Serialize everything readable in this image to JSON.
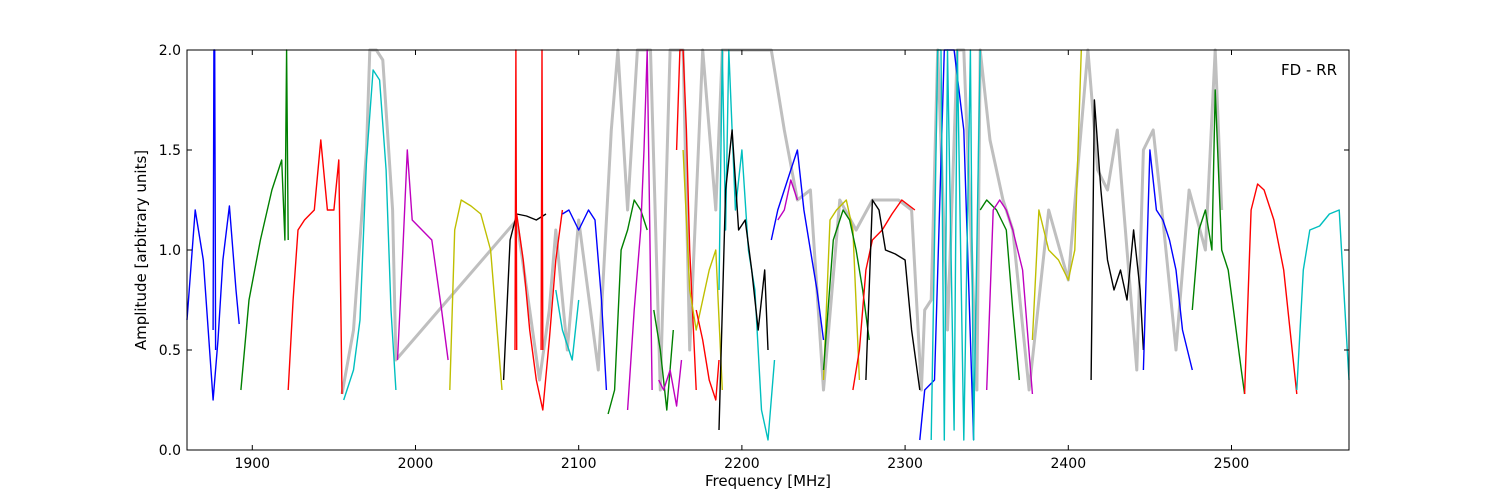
{
  "chart_data": {
    "type": "line",
    "title": "",
    "annotation": "FD - RR",
    "xlabel": "Frequency [MHz]",
    "ylabel": "Amplitude [arbitrary units]",
    "xlim": [
      1860,
      2572
    ],
    "ylim": [
      0.0,
      2.0
    ],
    "xticks": [
      1900,
      2000,
      2100,
      2200,
      2300,
      2400,
      2500
    ],
    "xtick_labels": [
      "1900",
      "2000",
      "2100",
      "2200",
      "2300",
      "2400",
      "2500"
    ],
    "yticks": [
      0.0,
      0.5,
      1.0,
      1.5,
      2.0
    ],
    "ytick_labels": [
      "0.0",
      "0.5",
      "1.0",
      "1.5",
      "2.0"
    ],
    "grid": false,
    "envelope": {
      "color": "#bfbfbf",
      "x": [
        1955,
        1962,
        1970,
        1972,
        1976,
        1980,
        1986,
        1988,
        2062,
        2070,
        2076,
        2082,
        2086,
        2093,
        2100,
        2112,
        2120,
        2124,
        2130,
        2136,
        2144,
        2150,
        2156,
        2164,
        2168,
        2176,
        2184,
        2188,
        2196,
        2204,
        2212,
        2218,
        2226,
        2234,
        2242,
        2250,
        2260,
        2270,
        2280,
        2296,
        2304,
        2310,
        2312,
        2316,
        2320,
        2326,
        2332,
        2336,
        2344,
        2346,
        2352,
        2360,
        2366,
        2376,
        2388,
        2400,
        2412,
        2418,
        2424,
        2430,
        2436,
        2442,
        2446,
        2452,
        2458,
        2466,
        2474,
        2484,
        2490,
        2494
      ],
      "y": [
        0.28,
        0.6,
        1.5,
        2.0,
        2.0,
        1.95,
        1.2,
        0.45,
        1.15,
        0.7,
        0.35,
        0.7,
        1.1,
        0.5,
        1.15,
        0.4,
        1.6,
        2.0,
        1.2,
        2.0,
        2.0,
        0.3,
        2.0,
        2.0,
        0.5,
        2.0,
        1.2,
        2.0,
        2.0,
        2.0,
        2.0,
        2.0,
        1.6,
        1.25,
        1.3,
        0.3,
        1.25,
        1.1,
        1.25,
        1.25,
        1.2,
        0.3,
        0.7,
        0.75,
        2.0,
        0.6,
        2.0,
        2.0,
        0.3,
        2.0,
        1.55,
        1.25,
        1.1,
        0.3,
        1.2,
        0.85,
        2.0,
        1.4,
        1.3,
        1.6,
        1.0,
        0.4,
        1.5,
        1.6,
        1.15,
        0.5,
        1.3,
        1.0,
        2.0,
        1.2
      ],
      "note": "grey traces behind the coloured curves (spiky/peaky regions)"
    },
    "series": [
      {
        "color": "#0000ff",
        "x": [
          1860,
          1865,
          1870,
          1873,
          1876,
          1879,
          1882,
          1886,
          1890,
          1892
        ],
        "y": [
          0.65,
          1.2,
          0.95,
          0.6,
          0.25,
          0.55,
          0.95,
          1.22,
          0.8,
          0.63
        ]
      },
      {
        "color": "#0000ff",
        "x": [
          1876,
          1876.5,
          1877,
          1877.5
        ],
        "y": [
          0.6,
          2.0,
          2.0,
          0.5
        ]
      },
      {
        "color": "#008000",
        "x": [
          1893,
          1898,
          1905,
          1912,
          1918,
          1920,
          1921,
          1922
        ],
        "y": [
          0.3,
          0.75,
          1.05,
          1.3,
          1.45,
          1.05,
          2.0,
          1.05
        ]
      },
      {
        "color": "#ff0000",
        "x": [
          1922,
          1925,
          1928,
          1932,
          1938,
          1942,
          1946,
          1950,
          1953,
          1955
        ],
        "y": [
          0.3,
          0.75,
          1.1,
          1.15,
          1.2,
          1.55,
          1.2,
          1.2,
          1.45,
          0.28
        ]
      },
      {
        "color": "#00bfbf",
        "x": [
          1956,
          1962,
          1966,
          1970,
          1974,
          1978,
          1982,
          1985,
          1988
        ],
        "y": [
          0.25,
          0.4,
          0.65,
          1.45,
          1.9,
          1.85,
          1.4,
          0.7,
          0.3
        ]
      },
      {
        "color": "#bf00bf",
        "x": [
          1989,
          1992,
          1995,
          1998,
          2004,
          2010,
          2016,
          2020
        ],
        "y": [
          0.45,
          0.95,
          1.5,
          1.15,
          1.1,
          1.05,
          0.7,
          0.45
        ]
      },
      {
        "color": "#bfbf00",
        "x": [
          2021,
          2024,
          2028,
          2034,
          2040,
          2046,
          2050,
          2053
        ],
        "y": [
          0.3,
          1.1,
          1.25,
          1.22,
          1.18,
          1.0,
          0.6,
          0.3
        ]
      },
      {
        "color": "#000000",
        "x": [
          2054,
          2058,
          2062,
          2068,
          2074,
          2080
        ],
        "y": [
          0.35,
          1.05,
          1.18,
          1.17,
          1.15,
          1.18
        ]
      },
      {
        "color": "#ff0000",
        "x": [
          2062,
          2066,
          2070,
          2074,
          2078,
          2082,
          2086,
          2090
        ],
        "y": [
          1.18,
          0.95,
          0.6,
          0.35,
          0.2,
          0.55,
          0.95,
          1.2
        ]
      },
      {
        "color": "#ff0000",
        "x": [
          2061,
          2061.5,
          2062
        ],
        "y": [
          0.5,
          2.0,
          0.5
        ]
      },
      {
        "color": "#ff0000",
        "x": [
          2077,
          2077.5,
          2078
        ],
        "y": [
          0.5,
          2.0,
          0.5
        ]
      },
      {
        "color": "#0000ff",
        "x": [
          2090,
          2094,
          2100,
          2106,
          2110,
          2114,
          2117
        ],
        "y": [
          1.18,
          1.2,
          1.1,
          1.2,
          1.15,
          0.75,
          0.3
        ]
      },
      {
        "color": "#00bfbf",
        "x": [
          2086,
          2090,
          2096,
          2100
        ],
        "y": [
          0.8,
          0.6,
          0.45,
          0.75
        ]
      },
      {
        "color": "#008000",
        "x": [
          2118,
          2122,
          2126,
          2130,
          2134,
          2138,
          2142
        ],
        "y": [
          0.18,
          0.3,
          1.0,
          1.1,
          1.25,
          1.2,
          1.1
        ]
      },
      {
        "color": "#bf00bf",
        "x": [
          2130,
          2134,
          2138,
          2140,
          2142,
          2145
        ],
        "y": [
          0.2,
          0.7,
          1.1,
          1.5,
          2.0,
          0.3
        ]
      },
      {
        "color": "#008000",
        "x": [
          2146,
          2150,
          2154,
          2158
        ],
        "y": [
          0.7,
          0.5,
          0.2,
          0.6
        ]
      },
      {
        "color": "#bf00bf",
        "x": [
          2149,
          2152,
          2156,
          2160,
          2163
        ],
        "y": [
          0.35,
          0.3,
          0.4,
          0.22,
          0.45
        ]
      },
      {
        "color": "#ff0000",
        "x": [
          2160,
          2162,
          2164,
          2166,
          2168,
          2172
        ],
        "y": [
          1.5,
          2.0,
          2.0,
          1.6,
          1.0,
          0.3
        ]
      },
      {
        "color": "#bfbf00",
        "x": [
          2164,
          2168,
          2172,
          2176,
          2180,
          2184,
          2188
        ],
        "y": [
          1.5,
          0.8,
          0.6,
          0.75,
          0.9,
          1.0,
          0.3
        ]
      },
      {
        "color": "#ff0000",
        "x": [
          2172,
          2176,
          2180,
          2184,
          2186
        ],
        "y": [
          0.7,
          0.55,
          0.35,
          0.25,
          0.45
        ]
      },
      {
        "color": "#00bfbf",
        "x": [
          2186,
          2188,
          2190,
          2192,
          2196,
          2200,
          2204,
          2208,
          2212,
          2216,
          2220
        ],
        "y": [
          0.8,
          2.0,
          1.1,
          2.0,
          1.2,
          1.5,
          1.0,
          0.8,
          0.2,
          0.05,
          0.45
        ]
      },
      {
        "color": "#000000",
        "x": [
          2186,
          2190,
          2194,
          2198,
          2202,
          2206,
          2210,
          2214,
          2216
        ],
        "y": [
          0.1,
          1.3,
          1.6,
          1.1,
          1.15,
          0.9,
          0.6,
          0.9,
          0.5
        ]
      },
      {
        "color": "#0000ff",
        "x": [
          2218,
          2222,
          2226,
          2230,
          2234,
          2238,
          2242,
          2246,
          2250
        ],
        "y": [
          1.05,
          1.2,
          1.3,
          1.4,
          1.5,
          1.2,
          1.0,
          0.8,
          0.55
        ]
      },
      {
        "color": "#bf00bf",
        "x": [
          2222,
          2226,
          2230,
          2234
        ],
        "y": [
          1.15,
          1.2,
          1.35,
          1.25
        ]
      },
      {
        "color": "#bfbf00",
        "x": [
          2250,
          2254,
          2258,
          2264,
          2268,
          2272
        ],
        "y": [
          0.35,
          1.15,
          1.2,
          1.25,
          1.1,
          0.35
        ]
      },
      {
        "color": "#008000",
        "x": [
          2250,
          2256,
          2262,
          2266,
          2270,
          2274,
          2278
        ],
        "y": [
          0.4,
          1.05,
          1.2,
          1.15,
          1.0,
          0.8,
          0.55
        ]
      },
      {
        "color": "#ff0000",
        "x": [
          2268,
          2272,
          2276,
          2280,
          2286,
          2292,
          2298,
          2306
        ],
        "y": [
          0.3,
          0.5,
          0.9,
          1.05,
          1.1,
          1.18,
          1.25,
          1.2
        ]
      },
      {
        "color": "#000000",
        "x": [
          2276,
          2280,
          2284,
          2288,
          2294,
          2300,
          2304,
          2309
        ],
        "y": [
          0.35,
          1.25,
          1.2,
          1.0,
          0.98,
          0.95,
          0.6,
          0.3
        ]
      },
      {
        "color": "#0000ff",
        "x": [
          2309,
          2312,
          2318,
          2324,
          2330,
          2336,
          2342
        ],
        "y": [
          0.05,
          0.3,
          0.35,
          2.0,
          2.0,
          1.6,
          0.05
        ]
      },
      {
        "color": "#00bfbf",
        "x": [
          2316,
          2320,
          2322,
          2324,
          2326,
          2330,
          2332,
          2336,
          2340,
          2342,
          2346
        ],
        "y": [
          0.05,
          2.0,
          2.0,
          0.05,
          2.0,
          0.1,
          2.0,
          0.05,
          2.0,
          0.05,
          2.0
        ]
      },
      {
        "color": "#008000",
        "x": [
          2346,
          2350,
          2356,
          2362,
          2366,
          2370
        ],
        "y": [
          1.2,
          1.25,
          1.2,
          1.1,
          0.7,
          0.35
        ]
      },
      {
        "color": "#bf00bf",
        "x": [
          2350,
          2354,
          2358,
          2362,
          2366,
          2372,
          2378
        ],
        "y": [
          0.3,
          1.2,
          1.25,
          1.2,
          1.1,
          0.9,
          0.28
        ]
      },
      {
        "color": "#bfbf00",
        "x": [
          2378,
          2382,
          2388,
          2394,
          2400,
          2404,
          2408
        ],
        "y": [
          0.55,
          1.2,
          1.0,
          0.95,
          0.85,
          1.0,
          2.0
        ]
      },
      {
        "color": "#000000",
        "x": [
          2414,
          2416,
          2420,
          2424,
          2428,
          2432,
          2436,
          2440,
          2444,
          2446
        ],
        "y": [
          0.35,
          1.75,
          1.3,
          0.95,
          0.8,
          0.9,
          0.75,
          1.1,
          0.8,
          0.5
        ]
      },
      {
        "color": "#0000ff",
        "x": [
          2446,
          2450,
          2454,
          2458,
          2462,
          2466,
          2470,
          2476
        ],
        "y": [
          0.4,
          1.5,
          1.2,
          1.15,
          1.05,
          0.9,
          0.6,
          0.4
        ]
      },
      {
        "color": "#008000",
        "x": [
          2476,
          2480,
          2484,
          2488,
          2490,
          2494,
          2498,
          2502,
          2506,
          2508
        ],
        "y": [
          0.7,
          1.1,
          1.2,
          1.0,
          1.8,
          1.0,
          0.9,
          0.65,
          0.4,
          0.28
        ]
      },
      {
        "color": "#ff0000",
        "x": [
          2508,
          2512,
          2516,
          2520,
          2526,
          2532,
          2540
        ],
        "y": [
          0.28,
          1.2,
          1.33,
          1.3,
          1.15,
          0.9,
          0.28
        ]
      },
      {
        "color": "#00bfbf",
        "x": [
          2540,
          2544,
          2548,
          2554,
          2560,
          2566,
          2572
        ],
        "y": [
          0.3,
          0.9,
          1.1,
          1.12,
          1.18,
          1.2,
          0.35
        ]
      }
    ]
  }
}
